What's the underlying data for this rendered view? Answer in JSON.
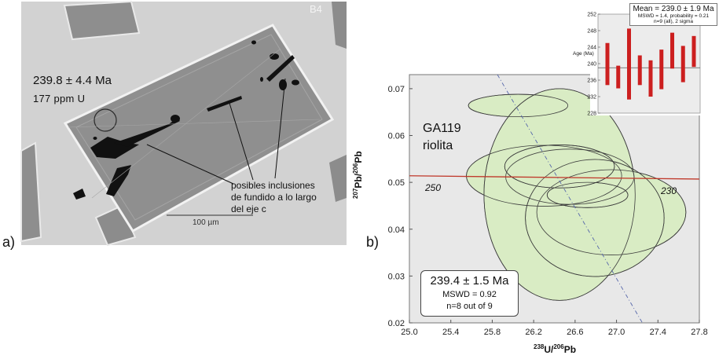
{
  "panel_a": {
    "label": "a)",
    "grain_id": "B4",
    "age": "239.8 ± 4.4 Ma",
    "uranium": "177 ppm U",
    "annotation": [
      "posibles inclusiones",
      "de fundido a lo largo",
      "del eje c"
    ],
    "scale_bar": "100 µm"
  },
  "panel_b": {
    "label": "b)",
    "sample": "GA119",
    "rock": "riolita",
    "result_box": {
      "age": "239.4 ± 1.5 Ma",
      "mswd": "MSWD = 0.92",
      "n": "n=8 out of 9"
    },
    "concordia_age_labels": [
      {
        "text": "250",
        "x": 25.12,
        "y": 0.0505
      },
      {
        "text": "230",
        "x": 27.65,
        "y": 0.0498
      }
    ]
  },
  "chart_data": [
    {
      "type": "scatter",
      "title": "GA119 riolita",
      "xlabel": "238U/206Pb",
      "ylabel": "207Pb/206Pb",
      "xlim": [
        25.0,
        27.8
      ],
      "ylim": [
        0.02,
        0.073
      ],
      "xticks": [
        "25.0",
        "25.4",
        "25.8",
        "26.2",
        "26.6",
        "27.0",
        "27.4",
        "27.8"
      ],
      "yticks": [
        "0.02",
        "0.03",
        "0.04",
        "0.05",
        "0.06",
        "0.07"
      ],
      "ellipses": [
        {
          "x": 26.05,
          "y": 0.0664,
          "rx": 0.48,
          "ry": 0.0024
        },
        {
          "x": 26.3,
          "y": 0.0514,
          "rx": 0.75,
          "ry": 0.0065
        },
        {
          "x": 26.55,
          "y": 0.0512,
          "rx": 0.62,
          "ry": 0.0059
        },
        {
          "x": 26.45,
          "y": 0.0474,
          "rx": 0.73,
          "ry": 0.0226
        },
        {
          "x": 26.95,
          "y": 0.0436,
          "rx": 0.72,
          "ry": 0.0091
        },
        {
          "x": 26.79,
          "y": 0.0424,
          "rx": 0.67,
          "ry": 0.0125
        },
        {
          "x": 26.72,
          "y": 0.0473,
          "rx": 0.39,
          "ry": 0.0027
        },
        {
          "x": 26.45,
          "y": 0.0534,
          "rx": 0.53,
          "ry": 0.0046
        }
      ],
      "concordia": [
        {
          "x": 25.0,
          "y": 0.0514
        },
        {
          "x": 27.8,
          "y": 0.0507
        }
      ],
      "regression": [
        {
          "x": 25.85,
          "y": 0.073
        },
        {
          "x": 27.25,
          "y": 0.02
        }
      ],
      "colors": {
        "ellipse_fill": "#d9ecc4",
        "ellipse_stroke": "#3d3d3d",
        "concordia": "#c0392b",
        "regression": "#5566aa",
        "background": "#e8e8e8"
      }
    },
    {
      "type": "bar",
      "title": "Mean = 239.0 ± 1.9 Ma",
      "subtitle": [
        "MSWD = 1.4, probability = 0.21",
        "n=9 (all), 2 sigma"
      ],
      "ylabel": "Age (Ma)",
      "ylim": [
        228,
        252
      ],
      "yticks": [
        "228",
        "232",
        "236",
        "240",
        "244",
        "248",
        "252"
      ],
      "mean": 239.0,
      "error_bars": [
        {
          "low": 234.8,
          "high": 245.0
        },
        {
          "low": 234.0,
          "high": 239.5
        },
        {
          "low": 231.3,
          "high": 248.5
        },
        {
          "low": 234.8,
          "high": 242.0
        },
        {
          "low": 232.0,
          "high": 240.8
        },
        {
          "low": 233.8,
          "high": 243.4
        },
        {
          "low": 238.8,
          "high": 247.5
        },
        {
          "low": 235.5,
          "high": 244.3
        },
        {
          "low": 239.2,
          "high": 246.7
        }
      ],
      "colors": {
        "bar": "#cc1f1f",
        "mean_line": "#555555"
      }
    }
  ]
}
